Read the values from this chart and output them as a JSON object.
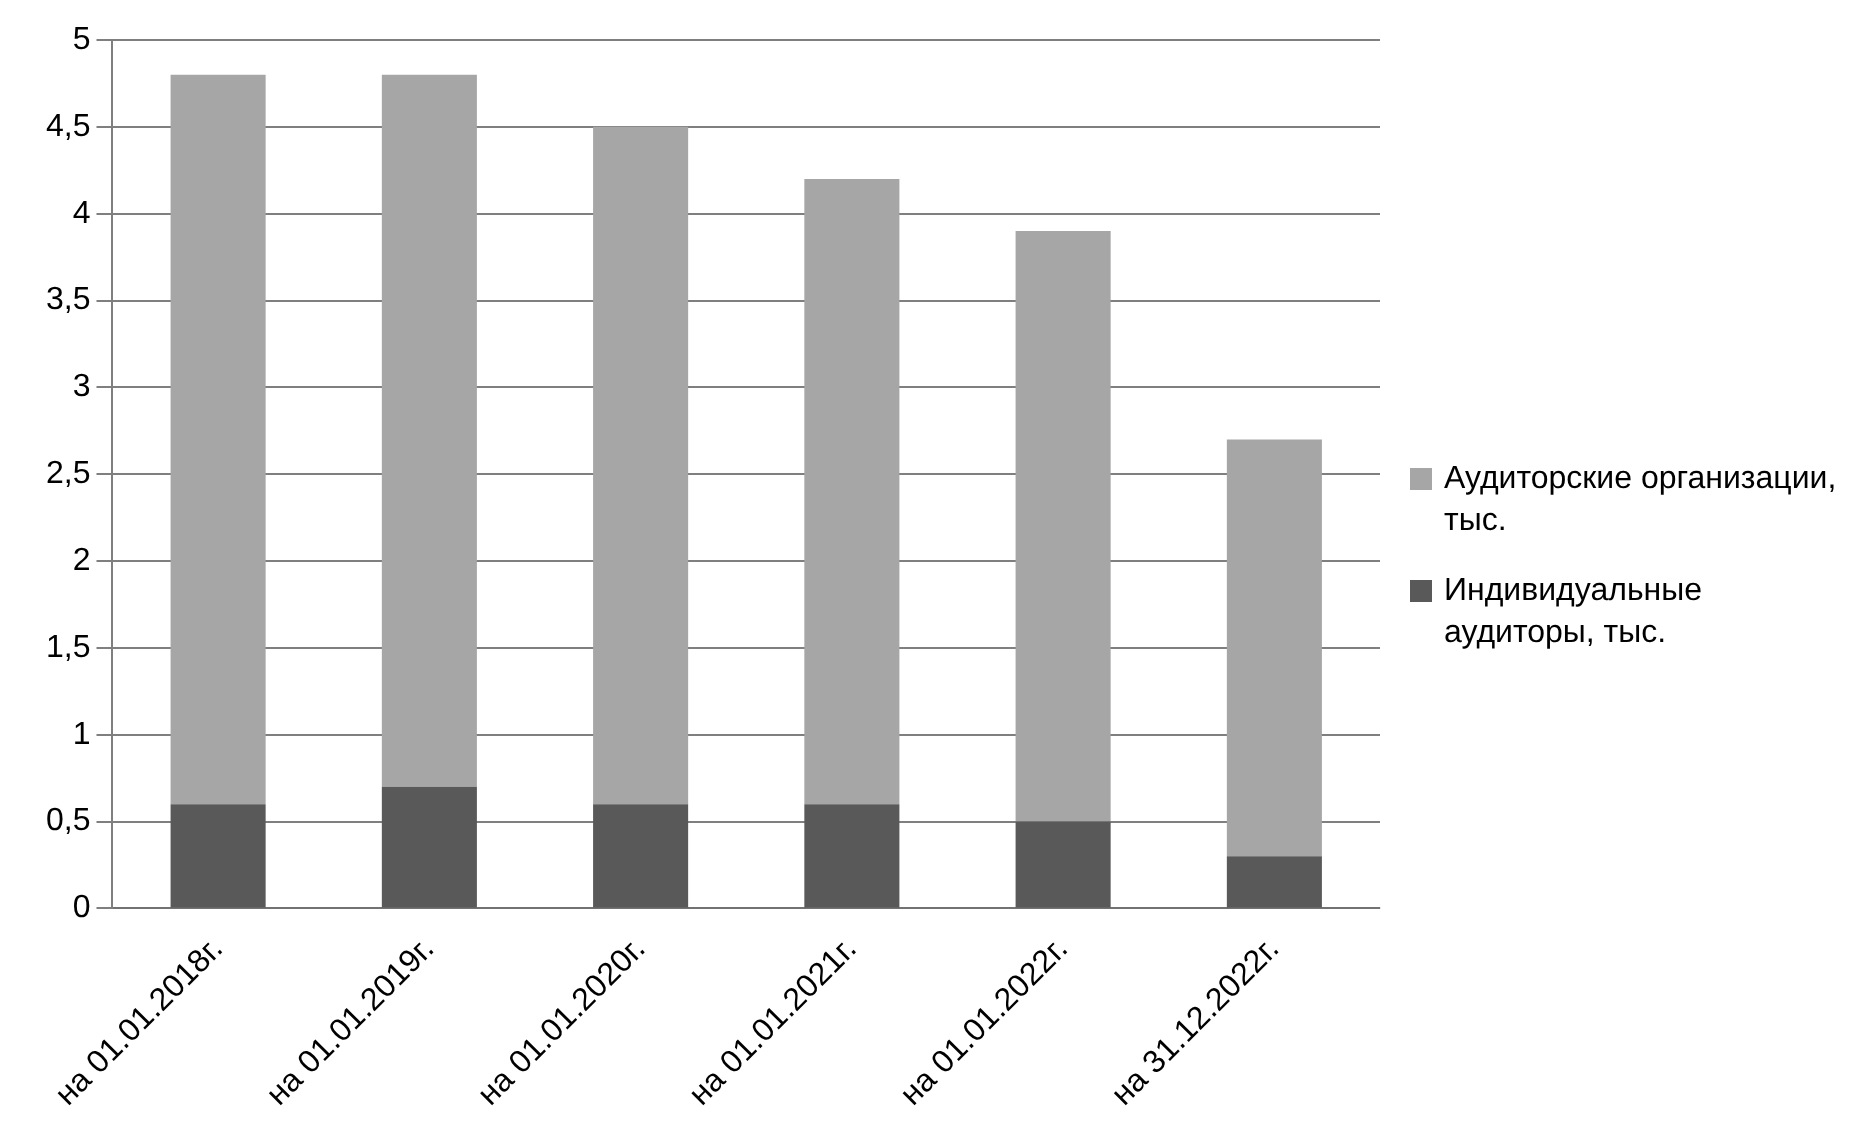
{
  "chart_data": {
    "type": "bar",
    "stacked": true,
    "categories": [
      "на 01.01.2018г.",
      "на 01.01.2019г.",
      "на 01.01.2020г.",
      "на 01.01.2021г.",
      "на 01.01.2022г.",
      "на 31.12.2022г."
    ],
    "series": [
      {
        "name": "Индивидуальные аудиторы, тыс.",
        "color": "#595959",
        "values": [
          0.6,
          0.7,
          0.6,
          0.6,
          0.5,
          0.3
        ]
      },
      {
        "name": "Аудиторские организации, тыс.",
        "color": "#a6a6a6",
        "values": [
          4.2,
          4.1,
          3.9,
          3.6,
          3.4,
          2.4
        ]
      }
    ],
    "ylim": [
      0,
      5
    ],
    "yticks": [
      0,
      {
        "value": 0.5,
        "label": "0,5"
      },
      1,
      {
        "value": 1.5,
        "label": "1,5"
      },
      2,
      {
        "value": 2.5,
        "label": "2,5"
      },
      3,
      {
        "value": 3.5,
        "label": "3,5"
      },
      4,
      {
        "value": 4.5,
        "label": "4,5"
      },
      5
    ],
    "grid": "y",
    "legend": "right"
  }
}
